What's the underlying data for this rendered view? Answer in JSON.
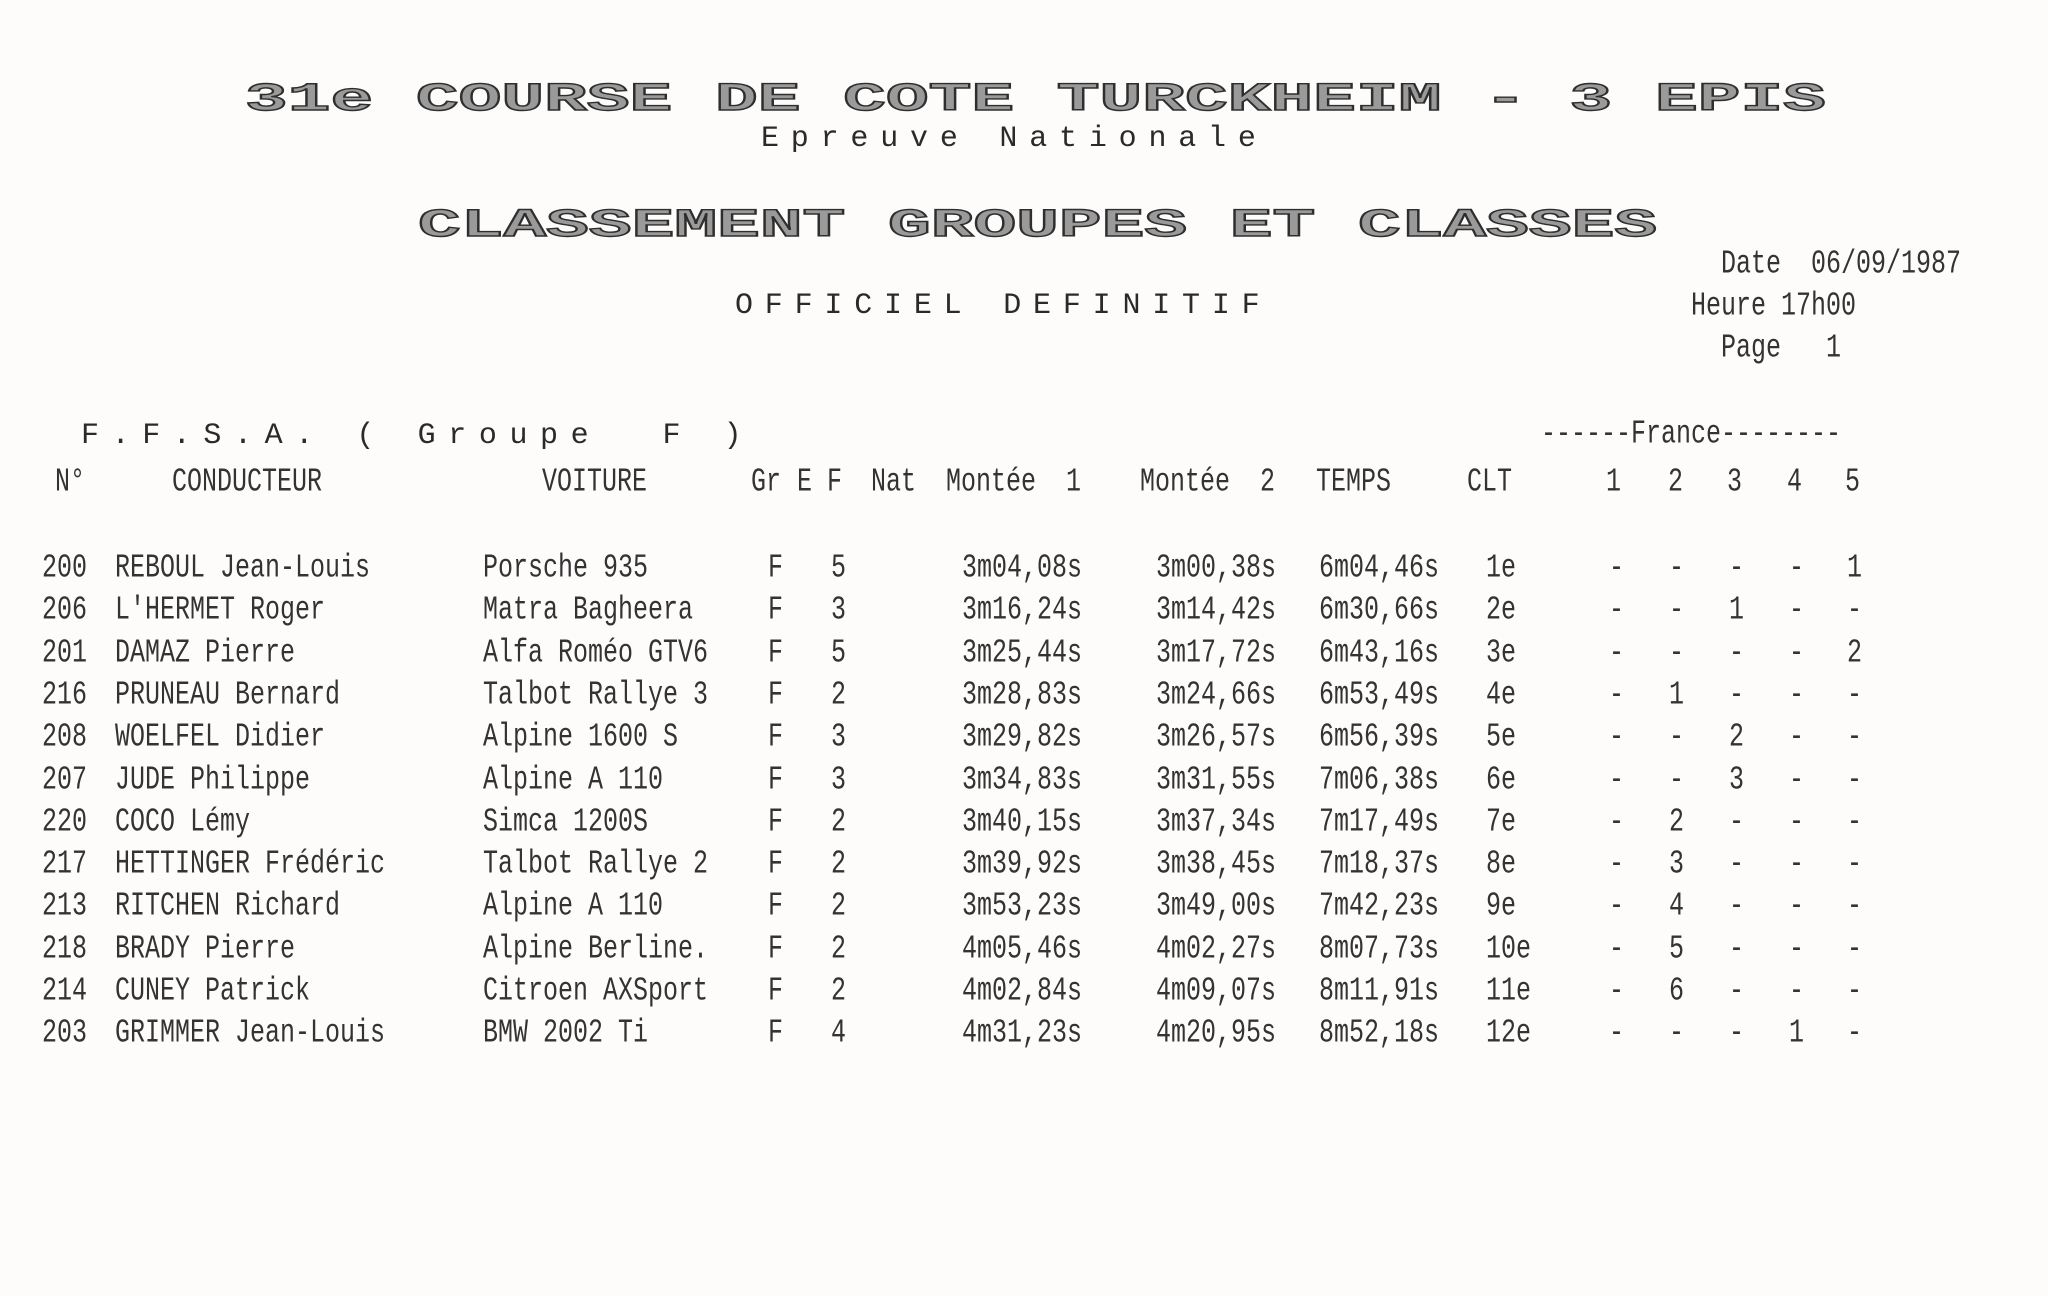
{
  "header": {
    "event_title": "31e COURSE DE COTE TURCKHEIM - 3 EPIS",
    "subtitle": "Epreuve Nationale",
    "classification_title": "CLASSEMENT GROUPES ET CLASSES",
    "status": "OFFICIEL DEFINITIF",
    "date_label": "Date",
    "date": "06/09/1987",
    "time_label": "Heure",
    "time": "17h00",
    "page_label": "Page",
    "page": "1"
  },
  "section": {
    "title": "F.F.S.A. ( Groupe  F )",
    "france_label": "------France--------"
  },
  "columns": {
    "num": "N°",
    "driver": "CONDUCTEUR",
    "car": "VOITURE",
    "gr": "Gr",
    "e": "E",
    "f": "F",
    "nat": "Nat",
    "run1": "Montée  1",
    "run2": "Montée  2",
    "total": "TEMPS",
    "clt": "CLT",
    "france": [
      "1",
      "2",
      "3",
      "4",
      "5"
    ]
  },
  "rows": [
    {
      "num": "200",
      "driver": "REBOUL Jean-Louis",
      "car": "Porsche 935",
      "gr": "F",
      "cls": "5",
      "run1": "3m04,08s",
      "run2": "3m00,38s",
      "total": "6m04,46s",
      "clt": "1e",
      "france": [
        "-",
        "-",
        "-",
        "-",
        "1"
      ]
    },
    {
      "num": "206",
      "driver": "L'HERMET Roger",
      "car": "Matra Bagheera",
      "gr": "F",
      "cls": "3",
      "run1": "3m16,24s",
      "run2": "3m14,42s",
      "total": "6m30,66s",
      "clt": "2e",
      "france": [
        "-",
        "-",
        "1",
        "-",
        "-"
      ]
    },
    {
      "num": "201",
      "driver": "DAMAZ Pierre",
      "car": "Alfa Roméo GTV6",
      "gr": "F",
      "cls": "5",
      "run1": "3m25,44s",
      "run2": "3m17,72s",
      "total": "6m43,16s",
      "clt": "3e",
      "france": [
        "-",
        "-",
        "-",
        "-",
        "2"
      ]
    },
    {
      "num": "216",
      "driver": "PRUNEAU Bernard",
      "car": "Talbot Rallye 3",
      "gr": "F",
      "cls": "2",
      "run1": "3m28,83s",
      "run2": "3m24,66s",
      "total": "6m53,49s",
      "clt": "4e",
      "france": [
        "-",
        "1",
        "-",
        "-",
        "-"
      ]
    },
    {
      "num": "208",
      "driver": "WOELFEL Didier",
      "car": "Alpine 1600 S",
      "gr": "F",
      "cls": "3",
      "run1": "3m29,82s",
      "run2": "3m26,57s",
      "total": "6m56,39s",
      "clt": "5e",
      "france": [
        "-",
        "-",
        "2",
        "-",
        "-"
      ]
    },
    {
      "num": "207",
      "driver": "JUDE Philippe",
      "car": "Alpine A 110",
      "gr": "F",
      "cls": "3",
      "run1": "3m34,83s",
      "run2": "3m31,55s",
      "total": "7m06,38s",
      "clt": "6e",
      "france": [
        "-",
        "-",
        "3",
        "-",
        "-"
      ]
    },
    {
      "num": "220",
      "driver": "COCO Lémy",
      "car": "Simca 1200S",
      "gr": "F",
      "cls": "2",
      "run1": "3m40,15s",
      "run2": "3m37,34s",
      "total": "7m17,49s",
      "clt": "7e",
      "france": [
        "-",
        "2",
        "-",
        "-",
        "-"
      ]
    },
    {
      "num": "217",
      "driver": "HETTINGER Frédéric",
      "car": "Talbot Rallye 2",
      "gr": "F",
      "cls": "2",
      "run1": "3m39,92s",
      "run2": "3m38,45s",
      "total": "7m18,37s",
      "clt": "8e",
      "france": [
        "-",
        "3",
        "-",
        "-",
        "-"
      ]
    },
    {
      "num": "213",
      "driver": "RITCHEN Richard",
      "car": "Alpine A 110",
      "gr": "F",
      "cls": "2",
      "run1": "3m53,23s",
      "run2": "3m49,00s",
      "total": "7m42,23s",
      "clt": "9e",
      "france": [
        "-",
        "4",
        "-",
        "-",
        "-"
      ]
    },
    {
      "num": "218",
      "driver": "BRADY Pierre",
      "car": "Alpine Berline.",
      "gr": "F",
      "cls": "2",
      "run1": "4m05,46s",
      "run2": "4m02,27s",
      "total": "8m07,73s",
      "clt": "10e",
      "france": [
        "-",
        "5",
        "-",
        "-",
        "-"
      ]
    },
    {
      "num": "214",
      "driver": "CUNEY Patrick",
      "car": "Citroen AXSport",
      "gr": "F",
      "cls": "2",
      "run1": "4m02,84s",
      "run2": "4m09,07s",
      "total": "8m11,91s",
      "clt": "11e",
      "france": [
        "-",
        "6",
        "-",
        "-",
        "-"
      ]
    },
    {
      "num": "203",
      "driver": "GRIMMER Jean-Louis",
      "car": "BMW 2002 Ti",
      "gr": "F",
      "cls": "4",
      "run1": "4m31,23s",
      "run2": "4m20,95s",
      "total": "8m52,18s",
      "clt": "12e",
      "france": [
        "-",
        "-",
        "-",
        "1",
        "-"
      ]
    }
  ]
}
